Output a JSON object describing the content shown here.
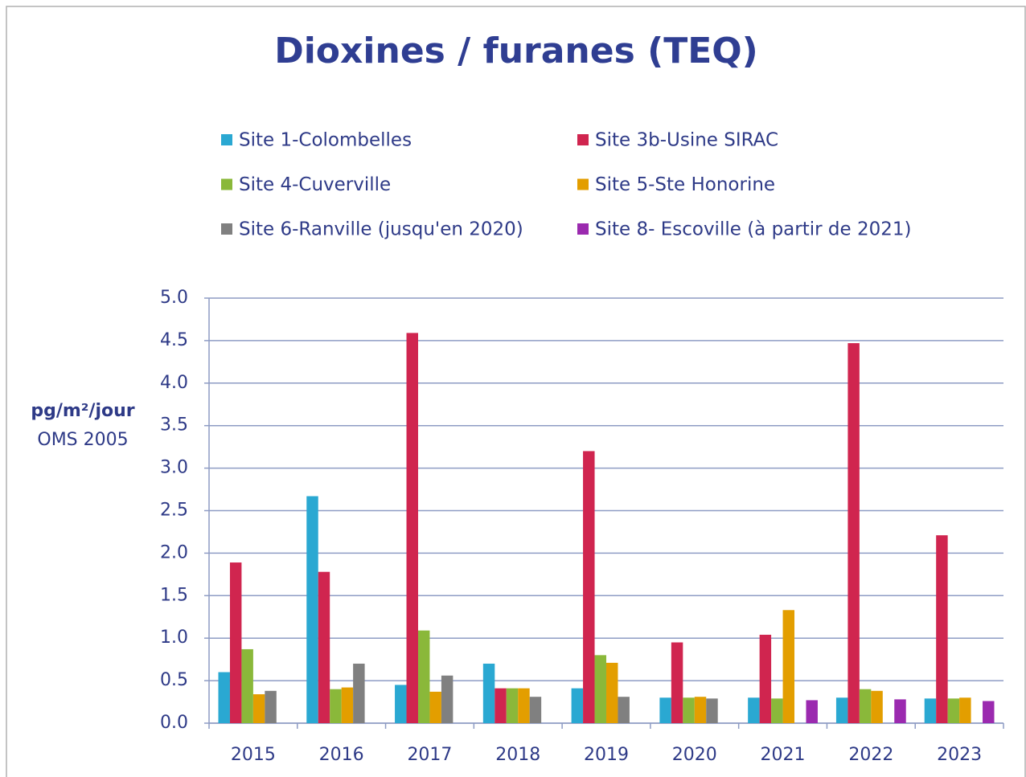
{
  "chart_data": {
    "type": "bar",
    "title": "Dioxines / furanes (TEQ)",
    "y_label": "pg/m²/jour",
    "y_sublabel": "OMS 2005",
    "categories": [
      "2015",
      "2016",
      "2017",
      "2018",
      "2019",
      "2020",
      "2021",
      "2022",
      "2023"
    ],
    "series": [
      {
        "name": "Site 1-Colombelles",
        "color": "#2aa8d2",
        "values": [
          0.6,
          2.67,
          0.45,
          0.7,
          0.41,
          0.3,
          0.3,
          0.3,
          0.29
        ]
      },
      {
        "name": "Site 3b-Usine SIRAC",
        "color": "#d0254f",
        "values": [
          1.89,
          1.78,
          4.59,
          0.41,
          3.2,
          0.95,
          1.04,
          4.47,
          2.21
        ]
      },
      {
        "name": "Site 4-Cuverville",
        "color": "#8ab83a",
        "values": [
          0.87,
          0.4,
          1.09,
          0.41,
          0.8,
          0.3,
          0.29,
          0.4,
          0.29
        ]
      },
      {
        "name": "Site 5-Ste Honorine",
        "color": "#e39e00",
        "values": [
          0.34,
          0.42,
          0.37,
          0.41,
          0.71,
          0.31,
          1.33,
          0.38,
          0.3
        ]
      },
      {
        "name": "Site 6-Ranville (jusqu'en 2020)",
        "color": "#808080",
        "values": [
          0.38,
          0.7,
          0.56,
          0.31,
          0.31,
          0.29,
          null,
          null,
          null
        ]
      },
      {
        "name": "Site 8- Escoville (à partir de 2021)",
        "color": "#9b2aaf",
        "values": [
          null,
          null,
          null,
          null,
          null,
          null,
          0.27,
          0.28,
          0.26
        ]
      }
    ],
    "ylim": [
      0,
      5
    ],
    "yticks": [
      {
        "value": 0,
        "label": "0.0"
      },
      0.5,
      {
        "value": 1,
        "label": "1.0"
      },
      1.5,
      {
        "value": 2,
        "label": "2.0"
      },
      2.5,
      {
        "value": 3,
        "label": "3.0"
      },
      3.5,
      {
        "value": 4,
        "label": "4.0"
      },
      4.5,
      {
        "value": 5,
        "label": "5.0"
      }
    ],
    "grid": true,
    "legend": "top"
  }
}
